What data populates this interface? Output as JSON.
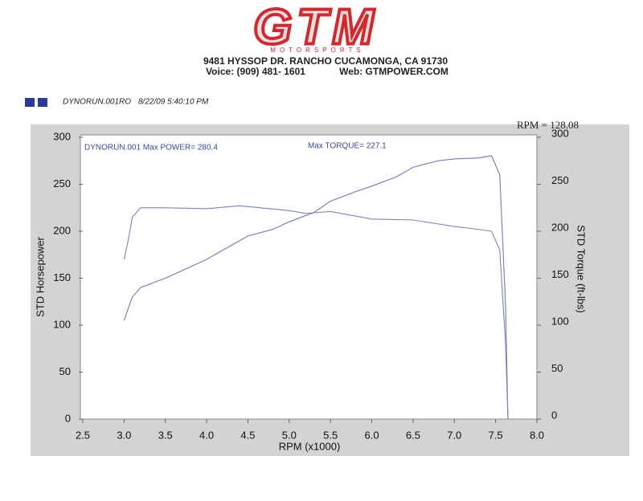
{
  "header": {
    "logo": "GTM",
    "logo_sub": "MOTORSPORTS",
    "address": "9481 HYSSOP DR. RANCHO CUCAMONGA, CA 91730",
    "voice": "Voice: (909) 481- 1601",
    "web": "Web: GTMPOWER.COM"
  },
  "run_info": {
    "file": "DYNORUN.001RO",
    "timestamp": "8/22/09 5:40:10 PM"
  },
  "chart_data": {
    "type": "line",
    "corner_note": "RPM = 128.08",
    "annotations": [
      "DYNORUN.001  Max POWER= 280.4",
      "Max TORQUE= 227.1"
    ],
    "x_label": "RPM (x1000)",
    "y_label": "STD Horsepower",
    "y2_label": "STD Torque (ft-lbs)",
    "xlim": [
      2.5,
      8.0
    ],
    "xticks": [
      2.5,
      {
        "value": 3,
        "label": "3.0"
      },
      3.5,
      {
        "value": 4,
        "label": "4.0"
      },
      4.5,
      {
        "value": 5,
        "label": "5.0"
      },
      5.5,
      {
        "value": 6,
        "label": "6.0"
      },
      6.5,
      {
        "value": 7,
        "label": "7.0"
      },
      7.5,
      {
        "value": 8,
        "label": "8.0"
      }
    ],
    "ylim": [
      0,
      300
    ],
    "yticks": [
      0,
      50,
      100,
      150,
      200,
      250,
      300
    ],
    "y2lim": [
      0,
      300
    ],
    "y2ticks": [
      0,
      50,
      100,
      150,
      200,
      250,
      300
    ],
    "series": [
      {
        "name": "STD Horsepower",
        "color": "#6e7db4",
        "axis": "y",
        "x": [
          3.0,
          3.1,
          3.2,
          3.5,
          3.8,
          4.0,
          4.2,
          4.5,
          4.8,
          5.0,
          5.3,
          5.5,
          5.8,
          6.0,
          6.3,
          6.5,
          6.8,
          7.0,
          7.3,
          7.45,
          7.55,
          7.62,
          7.65
        ],
        "values": [
          105,
          130,
          140,
          150,
          162,
          170,
          180,
          195,
          202,
          210,
          220,
          232,
          242,
          248,
          258,
          268,
          275,
          277,
          278,
          280.4,
          260,
          120,
          0
        ]
      },
      {
        "name": "STD Torque (ft-lbs)",
        "color": "#7c85b8",
        "axis": "y2",
        "x": [
          3.0,
          3.05,
          3.1,
          3.2,
          3.5,
          4.0,
          4.4,
          5.0,
          5.2,
          5.5,
          6.0,
          6.5,
          7.0,
          7.2,
          7.45,
          7.55,
          7.62,
          7.65
        ],
        "values": [
          170,
          190,
          215,
          225,
          225,
          224,
          227.1,
          222,
          219,
          221,
          213,
          212,
          205,
          203,
          200,
          180,
          80,
          0
        ]
      }
    ]
  }
}
